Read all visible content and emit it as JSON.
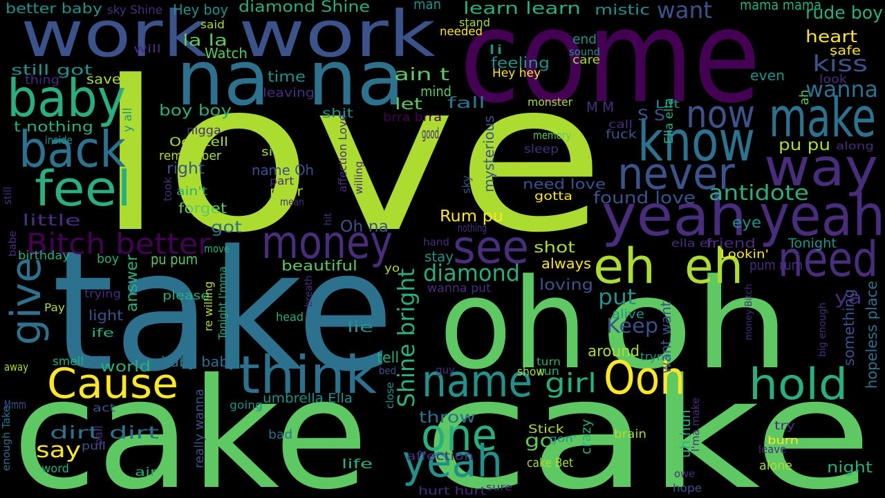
{
  "background": "#000000",
  "palette": {
    "purple": "#440154",
    "indigo": "#472d7b",
    "violet": "#3b528b",
    "blue": "#2c728e",
    "teal": "#21918c",
    "green_teal": "#28ae80",
    "green": "#5ec962",
    "lime": "#addc30",
    "yellow": "#fde725"
  },
  "words": [
    {
      "text": "love",
      "color": "lime"
    },
    {
      "text": "cake",
      "color": "green"
    },
    {
      "text": "cake",
      "color": "green"
    },
    {
      "text": "take",
      "color": "blue"
    },
    {
      "text": "oh",
      "color": "green"
    },
    {
      "text": "oh",
      "color": "green"
    },
    {
      "text": "come",
      "color": "purple"
    },
    {
      "text": "work",
      "color": "violet"
    },
    {
      "text": "work",
      "color": "violet"
    },
    {
      "text": "na",
      "color": "blue"
    },
    {
      "text": "na",
      "color": "blue"
    },
    {
      "text": "yeah",
      "color": "indigo"
    },
    {
      "text": "yeah",
      "color": "indigo"
    },
    {
      "text": "baby",
      "color": "green_teal"
    },
    {
      "text": "back",
      "color": "blue"
    },
    {
      "text": "feel",
      "color": "green_teal"
    },
    {
      "text": "know",
      "color": "blue"
    },
    {
      "text": "way",
      "color": "indigo"
    },
    {
      "text": "make",
      "color": "blue"
    },
    {
      "text": "now",
      "color": "violet"
    },
    {
      "text": "never",
      "color": "violet"
    },
    {
      "text": "money",
      "color": "indigo"
    },
    {
      "text": "see",
      "color": "indigo"
    },
    {
      "text": "eh",
      "color": "lime"
    },
    {
      "text": "eh",
      "color": "lime"
    },
    {
      "text": "need",
      "color": "indigo"
    },
    {
      "text": "think",
      "color": "blue"
    },
    {
      "text": "Cause",
      "color": "yellow"
    },
    {
      "text": "give",
      "color": "blue"
    },
    {
      "text": "name",
      "color": "teal"
    },
    {
      "text": "Ooh",
      "color": "yellow"
    },
    {
      "text": "hold",
      "color": "green_teal"
    },
    {
      "text": "one",
      "color": "green_teal"
    },
    {
      "text": "yeah",
      "color": "teal"
    },
    {
      "text": "Bitch better",
      "color": "purple"
    },
    {
      "text": "antidote",
      "color": "green_teal"
    },
    {
      "text": "found love",
      "color": "violet"
    },
    {
      "text": "diamond",
      "color": "green_teal"
    },
    {
      "text": "Shine bright",
      "color": "green_teal"
    },
    {
      "text": "put",
      "color": "teal"
    },
    {
      "text": "Keep",
      "color": "violet"
    },
    {
      "text": "girl",
      "color": "green_teal"
    },
    {
      "text": "kiss",
      "color": "violet"
    },
    {
      "text": "wanna",
      "color": "blue"
    },
    {
      "text": "want",
      "color": "violet"
    },
    {
      "text": "rude boy",
      "color": "green_teal"
    },
    {
      "text": "diamond Shine",
      "color": "green_teal"
    },
    {
      "text": "learn learn",
      "color": "green_teal"
    },
    {
      "text": "mama mama",
      "color": "green_teal"
    },
    {
      "text": "better baby",
      "color": "teal"
    },
    {
      "text": "Hey boy",
      "color": "teal"
    },
    {
      "text": "sky Shine",
      "color": "indigo"
    },
    {
      "text": "man",
      "color": "teal"
    },
    {
      "text": "mistic",
      "color": "teal"
    },
    {
      "text": "heart",
      "color": "yellow"
    },
    {
      "text": "safe",
      "color": "yellow"
    },
    {
      "text": "la la",
      "color": "green"
    },
    {
      "text": "Watch",
      "color": "green"
    },
    {
      "text": "said",
      "color": "lime"
    },
    {
      "text": "will",
      "color": "indigo"
    },
    {
      "text": "still got",
      "color": "teal"
    },
    {
      "text": "thing",
      "color": "indigo"
    },
    {
      "text": "save",
      "color": "lime"
    },
    {
      "text": "t nothing",
      "color": "green_teal"
    },
    {
      "text": "time",
      "color": "teal"
    },
    {
      "text": "ain t",
      "color": "green"
    },
    {
      "text": "feeling",
      "color": "teal"
    },
    {
      "text": "Hey hey",
      "color": "yellow"
    },
    {
      "text": "care",
      "color": "lime"
    },
    {
      "text": "end",
      "color": "teal"
    },
    {
      "text": "sound",
      "color": "teal"
    },
    {
      "text": "li",
      "color": "teal"
    },
    {
      "text": "needed",
      "color": "yellow"
    },
    {
      "text": "stand",
      "color": "lime"
    },
    {
      "text": "even",
      "color": "teal"
    },
    {
      "text": "look",
      "color": "indigo"
    },
    {
      "text": "boy boy",
      "color": "green_teal"
    },
    {
      "text": "leaving",
      "color": "indigo"
    },
    {
      "text": "mind",
      "color": "green"
    },
    {
      "text": "let",
      "color": "green"
    },
    {
      "text": "fall",
      "color": "blue"
    },
    {
      "text": "shit",
      "color": "teal"
    },
    {
      "text": "brra brra",
      "color": "purple"
    },
    {
      "text": "good",
      "color": "indigo"
    },
    {
      "text": "monster",
      "color": "lime"
    },
    {
      "text": "M M",
      "color": "indigo"
    },
    {
      "text": "S S",
      "color": "violet"
    },
    {
      "text": "Lift",
      "color": "teal"
    },
    {
      "text": "call",
      "color": "indigo"
    },
    {
      "text": "ah",
      "color": "green"
    },
    {
      "text": "Ella ella",
      "color": "green_teal"
    },
    {
      "text": "fuck",
      "color": "violet"
    },
    {
      "text": "memory",
      "color": "green"
    },
    {
      "text": "sleep",
      "color": "indigo"
    },
    {
      "text": "pu pu",
      "color": "lime"
    },
    {
      "text": "along",
      "color": "indigo"
    },
    {
      "text": "y all",
      "color": "teal"
    },
    {
      "text": "inside",
      "color": "teal"
    },
    {
      "text": "nigga",
      "color": "indigo"
    },
    {
      "text": "Ooh tell",
      "color": "lime"
    },
    {
      "text": "remember",
      "color": "lime"
    },
    {
      "text": "sight",
      "color": "lime"
    },
    {
      "text": "right",
      "color": "violet"
    },
    {
      "text": "name Oh",
      "color": "violet"
    },
    {
      "text": "part",
      "color": "indigo"
    },
    {
      "text": "pour",
      "color": "lime"
    },
    {
      "text": "mean",
      "color": "indigo"
    },
    {
      "text": "ain't",
      "color": "green_teal"
    },
    {
      "text": "took",
      "color": "indigo"
    },
    {
      "text": "forget",
      "color": "green"
    },
    {
      "text": "little",
      "color": "indigo"
    },
    {
      "text": "affection Love",
      "color": "indigo"
    },
    {
      "text": "willing",
      "color": "indigo"
    },
    {
      "text": "sky",
      "color": "violet"
    },
    {
      "text": "mysterious",
      "color": "violet"
    },
    {
      "text": "need love",
      "color": "violet"
    },
    {
      "text": "gotta",
      "color": "yellow"
    },
    {
      "text": "got",
      "color": "blue"
    },
    {
      "text": "Oh na",
      "color": "violet"
    },
    {
      "text": "Rum pu",
      "color": "yellow"
    },
    {
      "text": "nothing",
      "color": "indigo"
    },
    {
      "text": "hit",
      "color": "indigo"
    },
    {
      "text": "eye",
      "color": "teal"
    },
    {
      "text": "friend",
      "color": "indigo"
    },
    {
      "text": "Tonight",
      "color": "teal"
    },
    {
      "text": "ella eh",
      "color": "indigo"
    },
    {
      "text": "Lookin'",
      "color": "yellow"
    },
    {
      "text": "still",
      "color": "indigo"
    },
    {
      "text": "babe",
      "color": "indigo"
    },
    {
      "text": "birthday",
      "color": "green_teal"
    },
    {
      "text": "move",
      "color": "green_teal"
    },
    {
      "text": "hand",
      "color": "indigo"
    },
    {
      "text": "boy",
      "color": "green_teal"
    },
    {
      "text": "pu pum",
      "color": "green"
    },
    {
      "text": "shot",
      "color": "lime"
    },
    {
      "text": "always",
      "color": "yellow"
    },
    {
      "text": "stay",
      "color": "teal"
    },
    {
      "text": "yo",
      "color": "lime"
    },
    {
      "text": "beautiful",
      "color": "green"
    },
    {
      "text": "pum rum",
      "color": "indigo"
    },
    {
      "text": "answer",
      "color": "green_teal"
    },
    {
      "text": "trying",
      "color": "indigo"
    },
    {
      "text": "please",
      "color": "green_teal"
    },
    {
      "text": "breath",
      "color": "indigo"
    },
    {
      "text": "wanna put",
      "color": "indigo"
    },
    {
      "text": "loving",
      "color": "violet"
    },
    {
      "text": "ya",
      "color": "indigo"
    },
    {
      "text": "Pay",
      "color": "lime"
    },
    {
      "text": "light",
      "color": "violet"
    },
    {
      "text": "ife",
      "color": "green_teal"
    },
    {
      "text": "head",
      "color": "green_teal"
    },
    {
      "text": "re willing",
      "color": "lime"
    },
    {
      "text": "Tonight I'mma",
      "color": "green_teal"
    },
    {
      "text": "lie",
      "color": "teal"
    },
    {
      "text": "alive",
      "color": "teal"
    },
    {
      "text": "want want",
      "color": "violet"
    },
    {
      "text": "money Bitch",
      "color": "indigo"
    },
    {
      "text": "big enough",
      "color": "indigo"
    },
    {
      "text": "something",
      "color": "violet"
    },
    {
      "text": "hopeless place",
      "color": "blue"
    },
    {
      "text": "away",
      "color": "lime"
    },
    {
      "text": "smell",
      "color": "green_teal"
    },
    {
      "text": "world",
      "color": "green_teal"
    },
    {
      "text": "baby baby",
      "color": "blue"
    },
    {
      "text": "tell",
      "color": "green_teal"
    },
    {
      "text": "around",
      "color": "lime"
    },
    {
      "text": "tryna",
      "color": "teal"
    },
    {
      "text": "turn",
      "color": "green_teal"
    },
    {
      "text": "run",
      "color": "green_teal"
    },
    {
      "text": "show",
      "color": "lime"
    },
    {
      "text": "guy",
      "color": "indigo"
    },
    {
      "text": "bed",
      "color": "violet"
    },
    {
      "text": "close",
      "color": "teal"
    },
    {
      "text": "Mmm",
      "color": "violet"
    },
    {
      "text": "act",
      "color": "violet"
    },
    {
      "text": "going",
      "color": "teal"
    },
    {
      "text": "umbrella Ella",
      "color": "teal"
    },
    {
      "text": "throw",
      "color": "blue"
    },
    {
      "text": "dirt dirt",
      "color": "blue"
    },
    {
      "text": "say",
      "color": "yellow"
    },
    {
      "text": "enough Take",
      "color": "blue"
    },
    {
      "text": "pull",
      "color": "violet"
    },
    {
      "text": "really wanna",
      "color": "violet"
    },
    {
      "text": "bad",
      "color": "blue"
    },
    {
      "text": "go",
      "color": "green"
    },
    {
      "text": "Stick",
      "color": "lime"
    },
    {
      "text": "gon'",
      "color": "teal"
    },
    {
      "text": "crazy",
      "color": "green_teal"
    },
    {
      "text": "brain",
      "color": "lime"
    },
    {
      "text": "uh hun",
      "color": "green_teal"
    },
    {
      "text": "I'ma make",
      "color": "indigo"
    },
    {
      "text": "try",
      "color": "indigo"
    },
    {
      "text": "burn",
      "color": "yellow"
    },
    {
      "text": "leave",
      "color": "indigo"
    },
    {
      "text": "word",
      "color": "green_teal"
    },
    {
      "text": "ball",
      "color": "indigo"
    },
    {
      "text": "air",
      "color": "green_teal"
    },
    {
      "text": "life",
      "color": "green_teal"
    },
    {
      "text": "affection",
      "color": "indigo"
    },
    {
      "text": "cake Bet",
      "color": "lime"
    },
    {
      "text": "hurt hurt",
      "color": "indigo"
    },
    {
      "text": "sure",
      "color": "indigo"
    },
    {
      "text": "alone",
      "color": "lime"
    },
    {
      "text": "owe",
      "color": "indigo"
    },
    {
      "text": "hope",
      "color": "violet"
    },
    {
      "text": "night",
      "color": "green_teal"
    }
  ]
}
